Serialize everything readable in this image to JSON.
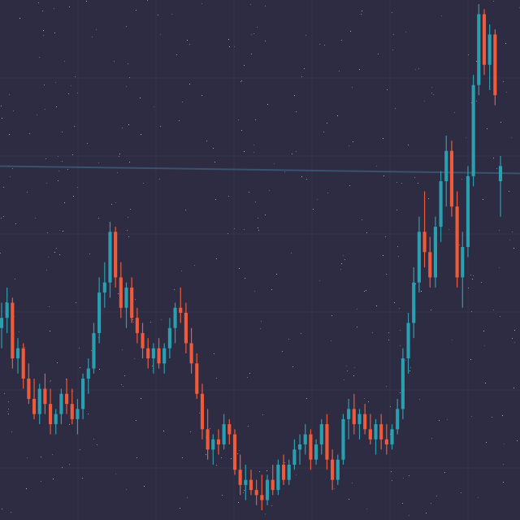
{
  "chart_data": {
    "type": "candlestick",
    "title": "",
    "xlabel": "",
    "ylabel": "",
    "ylim": [
      0,
      100
    ],
    "grid": true,
    "background": "#2d2c42",
    "colors": {
      "up": "#2a9fb0",
      "down": "#ef5a3a",
      "grid": "#3b3a55",
      "horizontal_line": "#3c5c78"
    },
    "horizontal_line_value": 67.5,
    "candles": [
      {
        "o": 36,
        "h": 41,
        "l": 32,
        "c": 38
      },
      {
        "o": 38,
        "h": 44,
        "l": 35,
        "c": 41
      },
      {
        "o": 41,
        "h": 42,
        "l": 28,
        "c": 30
      },
      {
        "o": 30,
        "h": 34,
        "l": 27,
        "c": 32
      },
      {
        "o": 32,
        "h": 33,
        "l": 24,
        "c": 26
      },
      {
        "o": 26,
        "h": 29,
        "l": 21,
        "c": 22
      },
      {
        "o": 22,
        "h": 26,
        "l": 18,
        "c": 19
      },
      {
        "o": 19,
        "h": 25,
        "l": 17,
        "c": 24
      },
      {
        "o": 24,
        "h": 27,
        "l": 19,
        "c": 21
      },
      {
        "o": 21,
        "h": 24,
        "l": 15,
        "c": 17
      },
      {
        "o": 17,
        "h": 20,
        "l": 15,
        "c": 19
      },
      {
        "o": 19,
        "h": 24,
        "l": 17,
        "c": 23
      },
      {
        "o": 23,
        "h": 26,
        "l": 19,
        "c": 21
      },
      {
        "o": 21,
        "h": 24,
        "l": 17,
        "c": 18
      },
      {
        "o": 18,
        "h": 22,
        "l": 15,
        "c": 20
      },
      {
        "o": 20,
        "h": 27,
        "l": 18,
        "c": 26
      },
      {
        "o": 26,
        "h": 30,
        "l": 23,
        "c": 28
      },
      {
        "o": 28,
        "h": 37,
        "l": 27,
        "c": 35
      },
      {
        "o": 35,
        "h": 46,
        "l": 33,
        "c": 43
      },
      {
        "o": 43,
        "h": 49,
        "l": 40,
        "c": 45
      },
      {
        "o": 45,
        "h": 57,
        "l": 42,
        "c": 55
      },
      {
        "o": 55,
        "h": 56,
        "l": 44,
        "c": 46
      },
      {
        "o": 46,
        "h": 49,
        "l": 38,
        "c": 40
      },
      {
        "o": 40,
        "h": 45,
        "l": 36,
        "c": 44
      },
      {
        "o": 44,
        "h": 46,
        "l": 37,
        "c": 38
      },
      {
        "o": 38,
        "h": 40,
        "l": 33,
        "c": 35
      },
      {
        "o": 35,
        "h": 37,
        "l": 30,
        "c": 32
      },
      {
        "o": 32,
        "h": 34,
        "l": 28,
        "c": 30
      },
      {
        "o": 30,
        "h": 33,
        "l": 27,
        "c": 32
      },
      {
        "o": 32,
        "h": 34,
        "l": 28,
        "c": 29
      },
      {
        "o": 29,
        "h": 33,
        "l": 27,
        "c": 32
      },
      {
        "o": 32,
        "h": 38,
        "l": 30,
        "c": 36
      },
      {
        "o": 36,
        "h": 41,
        "l": 33,
        "c": 40
      },
      {
        "o": 40,
        "h": 44,
        "l": 37,
        "c": 39
      },
      {
        "o": 39,
        "h": 41,
        "l": 31,
        "c": 33
      },
      {
        "o": 33,
        "h": 36,
        "l": 27,
        "c": 29
      },
      {
        "o": 29,
        "h": 31,
        "l": 22,
        "c": 23
      },
      {
        "o": 23,
        "h": 25,
        "l": 14,
        "c": 16
      },
      {
        "o": 16,
        "h": 20,
        "l": 10,
        "c": 12
      },
      {
        "o": 12,
        "h": 15,
        "l": 9,
        "c": 14
      },
      {
        "o": 14,
        "h": 16,
        "l": 11,
        "c": 13
      },
      {
        "o": 13,
        "h": 19,
        "l": 12,
        "c": 17
      },
      {
        "o": 17,
        "h": 18,
        "l": 13,
        "c": 15
      },
      {
        "o": 15,
        "h": 16,
        "l": 7,
        "c": 8
      },
      {
        "o": 8,
        "h": 11,
        "l": 3,
        "c": 5
      },
      {
        "o": 5,
        "h": 9,
        "l": 2,
        "c": 6
      },
      {
        "o": 6,
        "h": 8,
        "l": 3,
        "c": 4
      },
      {
        "o": 4,
        "h": 6,
        "l": 1,
        "c": 3
      },
      {
        "o": 3,
        "h": 7,
        "l": 0,
        "c": 2
      },
      {
        "o": 2,
        "h": 7,
        "l": 1,
        "c": 6
      },
      {
        "o": 6,
        "h": 9,
        "l": 3,
        "c": 4
      },
      {
        "o": 4,
        "h": 10,
        "l": 3,
        "c": 9
      },
      {
        "o": 9,
        "h": 11,
        "l": 5,
        "c": 6
      },
      {
        "o": 6,
        "h": 10,
        "l": 5,
        "c": 9
      },
      {
        "o": 9,
        "h": 14,
        "l": 8,
        "c": 12
      },
      {
        "o": 12,
        "h": 15,
        "l": 9,
        "c": 13
      },
      {
        "o": 13,
        "h": 17,
        "l": 11,
        "c": 15
      },
      {
        "o": 15,
        "h": 16,
        "l": 8,
        "c": 10
      },
      {
        "o": 10,
        "h": 14,
        "l": 9,
        "c": 13
      },
      {
        "o": 13,
        "h": 18,
        "l": 11,
        "c": 17
      },
      {
        "o": 17,
        "h": 19,
        "l": 8,
        "c": 10
      },
      {
        "o": 10,
        "h": 12,
        "l": 4,
        "c": 6
      },
      {
        "o": 6,
        "h": 11,
        "l": 5,
        "c": 10
      },
      {
        "o": 10,
        "h": 19,
        "l": 9,
        "c": 18
      },
      {
        "o": 18,
        "h": 22,
        "l": 14,
        "c": 20
      },
      {
        "o": 20,
        "h": 23,
        "l": 15,
        "c": 17
      },
      {
        "o": 17,
        "h": 20,
        "l": 14,
        "c": 19
      },
      {
        "o": 19,
        "h": 21,
        "l": 15,
        "c": 16
      },
      {
        "o": 16,
        "h": 19,
        "l": 13,
        "c": 14
      },
      {
        "o": 14,
        "h": 18,
        "l": 11,
        "c": 17
      },
      {
        "o": 17,
        "h": 19,
        "l": 12,
        "c": 14
      },
      {
        "o": 14,
        "h": 17,
        "l": 11,
        "c": 13
      },
      {
        "o": 13,
        "h": 17,
        "l": 12,
        "c": 16
      },
      {
        "o": 16,
        "h": 22,
        "l": 15,
        "c": 20
      },
      {
        "o": 20,
        "h": 32,
        "l": 18,
        "c": 30
      },
      {
        "o": 30,
        "h": 39,
        "l": 27,
        "c": 37
      },
      {
        "o": 37,
        "h": 48,
        "l": 34,
        "c": 45
      },
      {
        "o": 45,
        "h": 58,
        "l": 43,
        "c": 55
      },
      {
        "o": 55,
        "h": 63,
        "l": 48,
        "c": 51
      },
      {
        "o": 51,
        "h": 54,
        "l": 44,
        "c": 46
      },
      {
        "o": 46,
        "h": 58,
        "l": 44,
        "c": 56
      },
      {
        "o": 56,
        "h": 67,
        "l": 53,
        "c": 65
      },
      {
        "o": 65,
        "h": 74,
        "l": 60,
        "c": 71
      },
      {
        "o": 71,
        "h": 73,
        "l": 58,
        "c": 60
      },
      {
        "o": 60,
        "h": 63,
        "l": 44,
        "c": 46
      },
      {
        "o": 46,
        "h": 55,
        "l": 40,
        "c": 52
      },
      {
        "o": 52,
        "h": 68,
        "l": 50,
        "c": 66
      },
      {
        "o": 66,
        "h": 86,
        "l": 64,
        "c": 84
      },
      {
        "o": 84,
        "h": 100,
        "l": 82,
        "c": 98
      },
      {
        "o": 98,
        "h": 99,
        "l": 86,
        "c": 88
      },
      {
        "o": 88,
        "h": 96,
        "l": 83,
        "c": 94
      },
      {
        "o": 94,
        "h": 95,
        "l": 80,
        "c": 82
      },
      {
        "o": 65,
        "h": 70,
        "l": 58,
        "c": 68
      }
    ]
  }
}
